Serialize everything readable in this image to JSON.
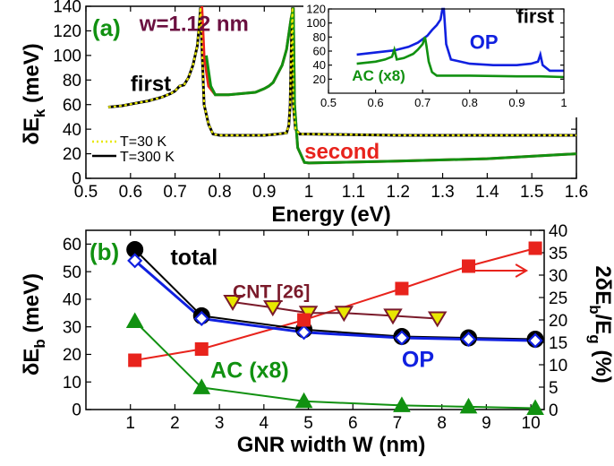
{
  "colors": {
    "black": "#000000",
    "red": "#e8231c",
    "green": "#119111",
    "blue": "#1020e0",
    "purple": "#6b1040",
    "yellow": "#e8e800",
    "maroon": "#7a1a2a"
  },
  "chart_data": [
    {
      "id": "a",
      "type": "line",
      "panel_label": "(a)",
      "xlabel": "Energy (eV)",
      "ylabel": "δE",
      "ylabel_sub": "k",
      "ylabel_unit": " (meV)",
      "xlim": [
        0.5,
        1.6
      ],
      "ylim": [
        0,
        140
      ],
      "xticks": [
        0.5,
        0.6,
        0.7,
        0.8,
        0.9,
        1,
        1.1,
        1.2,
        1.3,
        1.4,
        1.5,
        1.6
      ],
      "xtick_labels": [
        "0.5",
        "0.6",
        "0.7",
        "0.8",
        "0.9",
        "1",
        "1.1",
        "1.2",
        "1.3",
        "1.4",
        "1.5",
        "1.6"
      ],
      "yticks": [
        0,
        20,
        40,
        60,
        80,
        100,
        120,
        140
      ],
      "ytick_labels": [
        "0",
        "20",
        "40",
        "60",
        "80",
        "100",
        "120",
        "140"
      ],
      "annotations": [
        {
          "text": "w=1.12 nm",
          "x": 0.62,
          "y": 120,
          "color": "purple"
        },
        {
          "text": "first",
          "x": 0.6,
          "y": 71,
          "color": "black"
        },
        {
          "text": "second",
          "x": 0.99,
          "y": 16,
          "color": "red"
        }
      ],
      "legend": {
        "placement": "bottom-left",
        "entries": [
          {
            "label": "T=30 K",
            "color": "yellow",
            "style": "dotted"
          },
          {
            "label": "T=300 K",
            "color": "black",
            "style": "solid"
          }
        ]
      },
      "series": [
        {
          "color": "black",
          "points": [
            [
              0.55,
              58
            ],
            [
              0.58,
              59
            ],
            [
              0.61,
              61
            ],
            [
              0.64,
              63
            ],
            [
              0.67,
              66
            ],
            [
              0.69,
              69
            ],
            [
              0.7,
              71
            ],
            [
              0.71,
              75
            ],
            [
              0.72,
              76
            ],
            [
              0.73,
              82
            ],
            [
              0.74,
              92
            ],
            [
              0.75,
              108
            ],
            [
              0.755,
              128
            ],
            [
              0.757,
              139
            ],
            [
              0.765,
              60
            ],
            [
              0.775,
              44
            ],
            [
              0.785,
              36
            ],
            [
              0.8,
              35
            ],
            [
              0.85,
              35
            ],
            [
              0.9,
              35
            ],
            [
              0.93,
              36
            ],
            [
              0.95,
              37
            ],
            [
              0.955,
              43
            ],
            [
              0.958,
              60
            ],
            [
              0.96,
              100
            ],
            [
              0.963,
              139
            ],
            [
              0.965,
              60
            ],
            [
              0.97,
              40
            ],
            [
              0.98,
              36
            ],
            [
              1.0,
              36
            ],
            [
              1.2,
              35
            ],
            [
              1.4,
              35
            ],
            [
              1.6,
              35
            ]
          ]
        },
        {
          "color": "red",
          "points": [
            [
              0.76,
              140
            ],
            [
              0.765,
              100
            ],
            [
              0.775,
              75
            ],
            [
              0.79,
              68
            ],
            [
              0.82,
              68
            ],
            [
              0.85,
              69
            ],
            [
              0.88,
              70
            ],
            [
              0.9,
              73
            ],
            [
              0.91,
              75
            ],
            [
              0.92,
              78
            ],
            [
              0.93,
              85
            ],
            [
              0.94,
              92
            ],
            [
              0.95,
              105
            ],
            [
              0.96,
              130
            ],
            [
              0.965,
              139
            ],
            [
              0.968,
              60
            ],
            [
              0.975,
              25
            ],
            [
              0.99,
              13
            ],
            [
              1.0,
              12.5
            ],
            [
              1.2,
              14
            ],
            [
              1.4,
              16
            ],
            [
              1.6,
              20
            ]
          ]
        },
        {
          "color": "green",
          "points": [
            [
              0.77,
              100
            ],
            [
              0.78,
              75
            ],
            [
              0.79,
              68
            ],
            [
              0.82,
              68
            ],
            [
              0.85,
              69
            ],
            [
              0.88,
              70
            ],
            [
              0.9,
              73
            ],
            [
              0.91,
              75
            ],
            [
              0.92,
              78
            ],
            [
              0.93,
              85
            ],
            [
              0.94,
              92
            ],
            [
              0.95,
              105
            ],
            [
              0.96,
              130
            ],
            [
              0.965,
              139
            ],
            [
              0.968,
              60
            ],
            [
              0.975,
              25
            ],
            [
              0.99,
              13
            ],
            [
              1.0,
              12.5
            ],
            [
              1.2,
              14
            ],
            [
              1.4,
              16
            ],
            [
              1.6,
              20
            ]
          ]
        },
        {
          "color": "yellow",
          "dashed": true,
          "points": [
            [
              0.55,
              58
            ],
            [
              0.58,
              59
            ],
            [
              0.61,
              61
            ],
            [
              0.64,
              63
            ],
            [
              0.67,
              66
            ],
            [
              0.69,
              69
            ],
            [
              0.7,
              71
            ],
            [
              0.71,
              75
            ],
            [
              0.72,
              76
            ],
            [
              0.73,
              82
            ],
            [
              0.74,
              92
            ],
            [
              0.75,
              108
            ],
            [
              0.755,
              128
            ],
            [
              0.757,
              139
            ],
            [
              0.765,
              60
            ],
            [
              0.775,
              44
            ],
            [
              0.785,
              36
            ],
            [
              0.8,
              35
            ],
            [
              0.85,
              35
            ],
            [
              0.9,
              35
            ],
            [
              0.93,
              36
            ],
            [
              0.95,
              37
            ],
            [
              0.955,
              43
            ],
            [
              0.958,
              60
            ],
            [
              0.96,
              100
            ],
            [
              0.963,
              139
            ],
            [
              0.965,
              60
            ],
            [
              0.97,
              40
            ],
            [
              0.98,
              36
            ],
            [
              1.0,
              36
            ],
            [
              1.2,
              35
            ],
            [
              1.4,
              35
            ],
            [
              1.6,
              35
            ]
          ]
        }
      ]
    },
    {
      "id": "a-inset",
      "type": "line",
      "xlim": [
        0.5,
        1.0
      ],
      "ylim": [
        0,
        120
      ],
      "xticks": [
        0.5,
        0.6,
        0.7,
        0.8,
        0.9,
        1.0
      ],
      "xtick_labels": [
        "0.5",
        "0.6",
        "0.7",
        "0.8",
        "0.9",
        "1"
      ],
      "yticks": [
        20,
        40,
        60,
        80,
        100,
        120
      ],
      "ytick_labels": [
        "20",
        "40",
        "60",
        "80",
        "100",
        "120"
      ],
      "annotations": [
        {
          "text": "first",
          "x": 0.9,
          "y": 100,
          "color": "black"
        },
        {
          "text": "OP",
          "x": 0.8,
          "y": 63,
          "color": "blue"
        },
        {
          "text": "AC (x8)",
          "x": 0.55,
          "y": 18,
          "color": "green"
        }
      ],
      "series": [
        {
          "color": "blue",
          "points": [
            [
              0.56,
              55
            ],
            [
              0.6,
              58
            ],
            [
              0.64,
              61
            ],
            [
              0.67,
              66
            ],
            [
              0.69,
              72
            ],
            [
              0.71,
              82
            ],
            [
              0.72,
              90
            ],
            [
              0.73,
              97
            ],
            [
              0.738,
              105
            ],
            [
              0.742,
              120
            ],
            [
              0.745,
              120
            ],
            [
              0.75,
              70
            ],
            [
              0.76,
              48
            ],
            [
              0.8,
              42
            ],
            [
              0.85,
              40
            ],
            [
              0.9,
              40
            ],
            [
              0.93,
              42
            ],
            [
              0.945,
              45
            ],
            [
              0.95,
              55
            ],
            [
              0.955,
              40
            ],
            [
              0.97,
              32
            ],
            [
              1.0,
              32
            ]
          ]
        },
        {
          "color": "green",
          "points": [
            [
              0.56,
              42
            ],
            [
              0.6,
              45
            ],
            [
              0.62,
              48
            ],
            [
              0.635,
              52
            ],
            [
              0.64,
              62
            ],
            [
              0.645,
              48
            ],
            [
              0.66,
              50
            ],
            [
              0.68,
              56
            ],
            [
              0.69,
              62
            ],
            [
              0.7,
              70
            ],
            [
              0.705,
              80
            ],
            [
              0.708,
              68
            ],
            [
              0.713,
              45
            ],
            [
              0.72,
              30
            ],
            [
              0.73,
              25
            ],
            [
              0.8,
              25
            ],
            [
              0.9,
              24
            ],
            [
              0.95,
              24
            ],
            [
              1.0,
              23
            ]
          ]
        }
      ]
    },
    {
      "id": "b",
      "type": "line",
      "panel_label": "(b)",
      "xlabel": "GNR width W (nm)",
      "ylabel": "δE",
      "ylabel_sub": "b",
      "ylabel_unit": " (meV)",
      "y2label": "2δE",
      "y2label_sub1": "b",
      "y2label_mid": "/E",
      "y2label_sub2": "g",
      "y2label_unit": " (%)",
      "xlim": [
        0,
        10.3
      ],
      "ylim": [
        0,
        65
      ],
      "y2lim": [
        0,
        40
      ],
      "xticks": [
        1,
        2,
        3,
        4,
        5,
        6,
        7,
        8,
        9,
        10
      ],
      "xtick_labels": [
        "1",
        "2",
        "3",
        "4",
        "5",
        "6",
        "7",
        "8",
        "9",
        "10"
      ],
      "yticks": [
        0,
        10,
        20,
        30,
        40,
        50,
        60
      ],
      "ytick_labels": [
        "0",
        "10",
        "20",
        "30",
        "40",
        "50",
        "60"
      ],
      "y2ticks": [
        0,
        5,
        10,
        15,
        20,
        25,
        30,
        35,
        40
      ],
      "y2tick_labels": [
        "0",
        "5",
        "10",
        "15",
        "20",
        "25",
        "30",
        "35",
        "40"
      ],
      "annotations": [
        {
          "text": "total",
          "x": 1.9,
          "y": 52.5,
          "color": "black"
        },
        {
          "text": "CNT [26]",
          "x": 3.3,
          "y": 40.5,
          "color": "maroon"
        },
        {
          "text": "AC (x8)",
          "x": 2.8,
          "y": 11.5,
          "color": "green"
        },
        {
          "text": "OP",
          "x": 7.1,
          "y": 15.5,
          "color": "blue"
        }
      ],
      "series": [
        {
          "name": "total",
          "color": "black",
          "marker": "circle",
          "x": [
            1.1,
            2.6,
            4.9,
            7.1,
            8.6,
            10.1
          ],
          "y": [
            58,
            34,
            29,
            26.5,
            26,
            25.5
          ]
        },
        {
          "name": "OP",
          "color": "blue",
          "marker": "diamond",
          "x": [
            1.1,
            2.6,
            4.9,
            7.1,
            8.6,
            10.1
          ],
          "y": [
            54,
            33,
            28,
            26,
            25.5,
            25
          ]
        },
        {
          "name": "AC (x8)",
          "color": "green",
          "marker": "triangle",
          "x": [
            1.1,
            2.6,
            4.9,
            7.1,
            8.6,
            10.1
          ],
          "y": [
            32,
            8,
            3,
            1.5,
            1,
            0.5
          ]
        },
        {
          "name": "CNT [26]",
          "color": "maroon",
          "marker": "triangle-down",
          "x": [
            3.3,
            4.2,
            5,
            5.8,
            6.9,
            7.9
          ],
          "y": [
            39,
            37,
            35,
            35,
            34,
            33
          ]
        },
        {
          "color": "red",
          "marker": "square",
          "axis": "y2",
          "x": [
            1.1,
            2.6,
            4.9,
            7.1,
            8.6,
            10.1
          ],
          "y": [
            11,
            13.5,
            20,
            27,
            32,
            36
          ]
        }
      ],
      "arrow": {
        "color": "red",
        "x1": 8.7,
        "x2": 9.9,
        "y2": 31,
        "direction": "right"
      }
    }
  ]
}
